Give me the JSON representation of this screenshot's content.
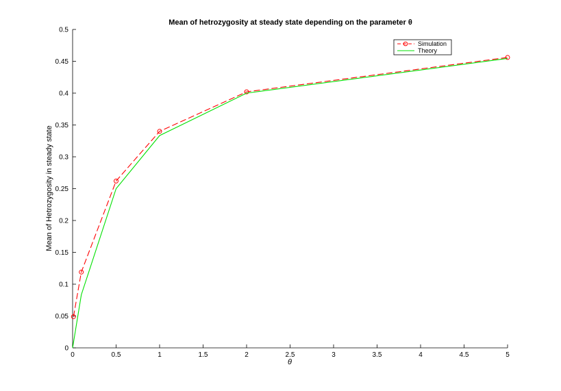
{
  "chart_data": {
    "type": "line",
    "title": "Mean of hetrozygosity at steady state depending on the parameter θ",
    "xlabel": "θ",
    "ylabel": "Mean of Hetrozygosity in steady state",
    "xlim": [
      0,
      5
    ],
    "ylim": [
      0,
      0.5
    ],
    "xticks": [
      "0",
      "0.5",
      "1",
      "1.5",
      "2",
      "2.5",
      "3",
      "3.5",
      "4",
      "4.5",
      "5"
    ],
    "yticks": [
      "0",
      "0.05",
      "0.1",
      "0.15",
      "0.2",
      "0.25",
      "0.3",
      "0.35",
      "0.4",
      "0.45",
      "0.5"
    ],
    "grid": false,
    "legend_position": "top-right",
    "series": [
      {
        "name": "Simulation",
        "color": "#ff0000",
        "line_style": "dashed",
        "marker": "circle",
        "x": [
          0.01,
          0.1,
          0.5,
          1,
          2,
          5
        ],
        "y": [
          0.049,
          0.119,
          0.262,
          0.34,
          0.402,
          0.456
        ]
      },
      {
        "name": "Theory",
        "color": "#00e000",
        "line_style": "solid",
        "marker": "none",
        "x": [
          0,
          0.1,
          0.5,
          1,
          2,
          5
        ],
        "y": [
          0.0,
          0.0833,
          0.25,
          0.3333,
          0.4,
          0.4545
        ]
      }
    ]
  }
}
